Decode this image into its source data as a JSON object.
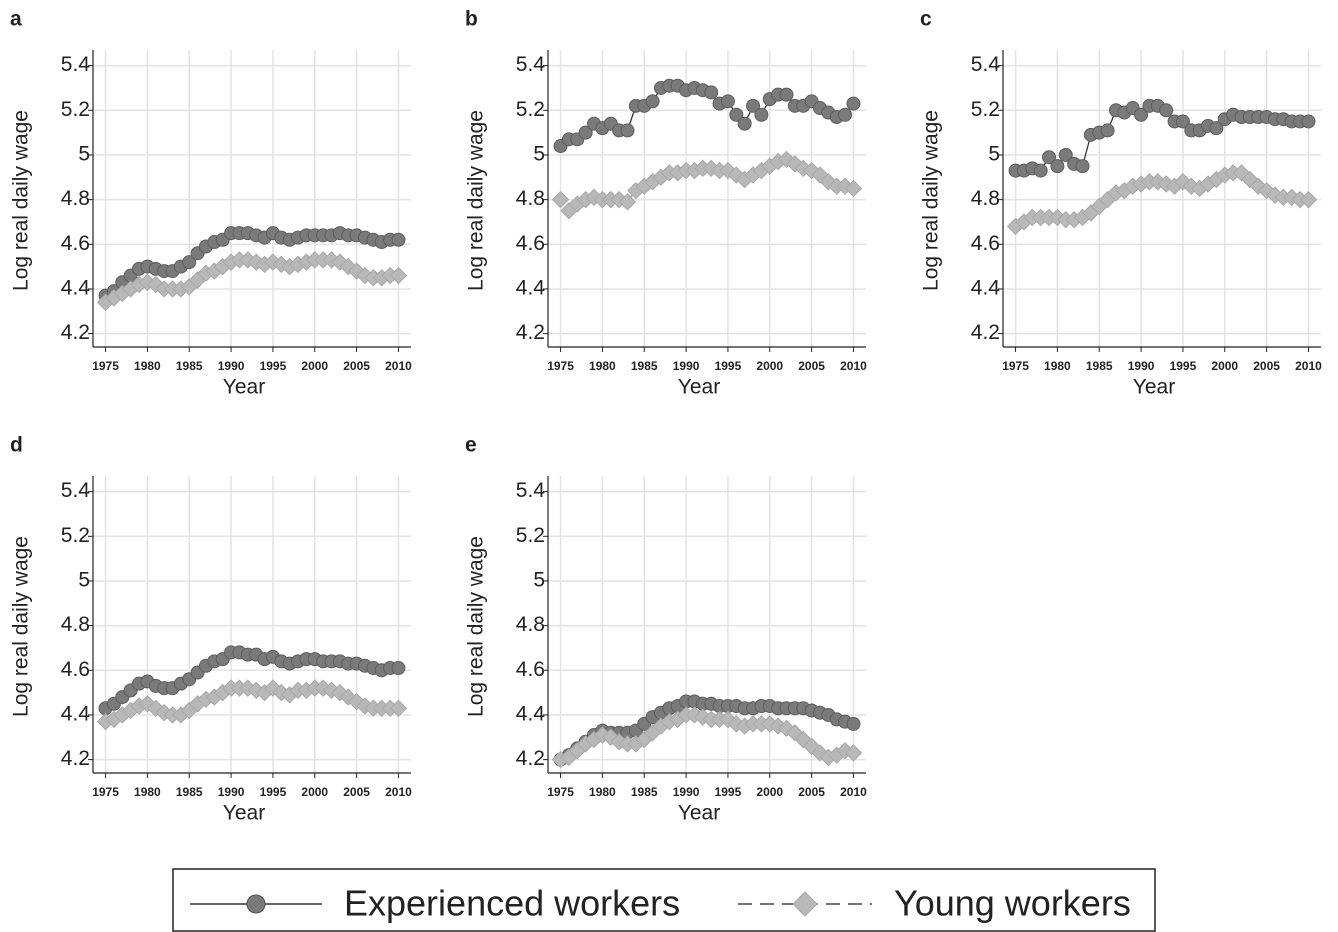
{
  "chart_data": [
    {
      "type": "line",
      "title": "a",
      "xlabel": "Year",
      "ylabel": "Log real daily wage",
      "x": [
        1975,
        1976,
        1977,
        1978,
        1979,
        1980,
        1981,
        1982,
        1983,
        1984,
        1985,
        1986,
        1987,
        1988,
        1989,
        1990,
        1991,
        1992,
        1993,
        1994,
        1995,
        1996,
        1997,
        1998,
        1999,
        2000,
        2001,
        2002,
        2003,
        2004,
        2005,
        2006,
        2007,
        2008,
        2009,
        2010
      ],
      "series": [
        {
          "name": "Experienced workers",
          "color": "#7a7a7a",
          "values": [
            4.37,
            4.39,
            4.43,
            4.46,
            4.49,
            4.5,
            4.49,
            4.48,
            4.48,
            4.5,
            4.52,
            4.56,
            4.59,
            4.61,
            4.62,
            4.65,
            4.65,
            4.65,
            4.64,
            4.63,
            4.65,
            4.63,
            4.62,
            4.63,
            4.64,
            4.64,
            4.64,
            4.64,
            4.65,
            4.64,
            4.64,
            4.63,
            4.62,
            4.61,
            4.62,
            4.62
          ]
        },
        {
          "name": "Young workers",
          "color": "#b8b8b8",
          "values": [
            4.34,
            4.36,
            4.38,
            4.4,
            4.42,
            4.43,
            4.42,
            4.4,
            4.4,
            4.4,
            4.41,
            4.44,
            4.47,
            4.48,
            4.5,
            4.52,
            4.53,
            4.53,
            4.52,
            4.51,
            4.52,
            4.51,
            4.5,
            4.51,
            4.52,
            4.53,
            4.53,
            4.53,
            4.52,
            4.5,
            4.48,
            4.46,
            4.45,
            4.45,
            4.46,
            4.46
          ]
        }
      ],
      "xlim": [
        1973.5,
        2011.5
      ],
      "xticks": [
        1975,
        1980,
        1985,
        1990,
        1995,
        2000,
        2005,
        2010
      ],
      "ylim": [
        4.14,
        5.47
      ],
      "yticks": [
        4.2,
        4.4,
        4.6,
        4.8,
        5,
        5.2,
        5.4
      ],
      "grid": true
    },
    {
      "type": "line",
      "title": "b",
      "xlabel": "Year",
      "ylabel": "Log real daily wage",
      "x": [
        1975,
        1976,
        1977,
        1978,
        1979,
        1980,
        1981,
        1982,
        1983,
        1984,
        1985,
        1986,
        1987,
        1988,
        1989,
        1990,
        1991,
        1992,
        1993,
        1994,
        1995,
        1996,
        1997,
        1998,
        1999,
        2000,
        2001,
        2002,
        2003,
        2004,
        2005,
        2006,
        2007,
        2008,
        2009,
        2010
      ],
      "series": [
        {
          "name": "Experienced workers",
          "color": "#7a7a7a",
          "values": [
            5.04,
            5.07,
            5.07,
            5.1,
            5.14,
            5.12,
            5.14,
            5.11,
            5.11,
            5.22,
            5.22,
            5.24,
            5.3,
            5.31,
            5.31,
            5.29,
            5.3,
            5.29,
            5.28,
            5.23,
            5.24,
            5.18,
            5.14,
            5.22,
            5.18,
            5.25,
            5.27,
            5.27,
            5.22,
            5.22,
            5.24,
            5.21,
            5.19,
            5.17,
            5.18,
            5.23
          ]
        },
        {
          "name": "Young workers",
          "color": "#b8b8b8",
          "values": [
            4.8,
            4.75,
            4.78,
            4.8,
            4.81,
            4.8,
            4.8,
            4.8,
            4.79,
            4.84,
            4.86,
            4.88,
            4.9,
            4.92,
            4.92,
            4.93,
            4.93,
            4.94,
            4.94,
            4.93,
            4.93,
            4.91,
            4.89,
            4.91,
            4.93,
            4.95,
            4.97,
            4.98,
            4.96,
            4.94,
            4.93,
            4.91,
            4.88,
            4.86,
            4.86,
            4.85
          ]
        }
      ],
      "xlim": [
        1973.5,
        2011.5
      ],
      "xticks": [
        1975,
        1980,
        1985,
        1990,
        1995,
        2000,
        2005,
        2010
      ],
      "ylim": [
        4.14,
        5.47
      ],
      "yticks": [
        4.2,
        4.4,
        4.6,
        4.8,
        5,
        5.2,
        5.4
      ],
      "grid": true
    },
    {
      "type": "line",
      "title": "c",
      "xlabel": "Year",
      "ylabel": "Log real daily wage",
      "x": [
        1975,
        1976,
        1977,
        1978,
        1979,
        1980,
        1981,
        1982,
        1983,
        1984,
        1985,
        1986,
        1987,
        1988,
        1989,
        1990,
        1991,
        1992,
        1993,
        1994,
        1995,
        1996,
        1997,
        1998,
        1999,
        2000,
        2001,
        2002,
        2003,
        2004,
        2005,
        2006,
        2007,
        2008,
        2009,
        2010
      ],
      "series": [
        {
          "name": "Experienced workers",
          "color": "#7a7a7a",
          "values": [
            4.93,
            4.93,
            4.94,
            4.93,
            4.99,
            4.95,
            5.0,
            4.96,
            4.95,
            5.09,
            5.1,
            5.11,
            5.2,
            5.19,
            5.21,
            5.18,
            5.22,
            5.22,
            5.2,
            5.15,
            5.15,
            5.11,
            5.11,
            5.13,
            5.12,
            5.16,
            5.18,
            5.17,
            5.17,
            5.17,
            5.17,
            5.16,
            5.16,
            5.15,
            5.15,
            5.15
          ]
        },
        {
          "name": "Young workers",
          "color": "#b8b8b8",
          "values": [
            4.68,
            4.7,
            4.72,
            4.72,
            4.72,
            4.72,
            4.71,
            4.71,
            4.72,
            4.74,
            4.77,
            4.8,
            4.83,
            4.84,
            4.86,
            4.87,
            4.88,
            4.88,
            4.87,
            4.86,
            4.88,
            4.86,
            4.85,
            4.87,
            4.89,
            4.91,
            4.92,
            4.92,
            4.89,
            4.86,
            4.84,
            4.82,
            4.81,
            4.81,
            4.8,
            4.8
          ]
        }
      ],
      "xlim": [
        1973.5,
        2011.5
      ],
      "xticks": [
        1975,
        1980,
        1985,
        1990,
        1995,
        2000,
        2005,
        2010
      ],
      "ylim": [
        4.14,
        5.47
      ],
      "yticks": [
        4.2,
        4.4,
        4.6,
        4.8,
        5,
        5.2,
        5.4
      ],
      "grid": true
    },
    {
      "type": "line",
      "title": "d",
      "xlabel": "Year",
      "ylabel": "Log real daily wage",
      "x": [
        1975,
        1976,
        1977,
        1978,
        1979,
        1980,
        1981,
        1982,
        1983,
        1984,
        1985,
        1986,
        1987,
        1988,
        1989,
        1990,
        1991,
        1992,
        1993,
        1994,
        1995,
        1996,
        1997,
        1998,
        1999,
        2000,
        2001,
        2002,
        2003,
        2004,
        2005,
        2006,
        2007,
        2008,
        2009,
        2010
      ],
      "series": [
        {
          "name": "Experienced workers",
          "color": "#7a7a7a",
          "values": [
            4.43,
            4.45,
            4.48,
            4.51,
            4.54,
            4.55,
            4.53,
            4.52,
            4.52,
            4.54,
            4.56,
            4.59,
            4.62,
            4.64,
            4.65,
            4.68,
            4.68,
            4.67,
            4.67,
            4.65,
            4.66,
            4.64,
            4.63,
            4.64,
            4.65,
            4.65,
            4.64,
            4.64,
            4.64,
            4.63,
            4.63,
            4.62,
            4.61,
            4.6,
            4.61,
            4.61
          ]
        },
        {
          "name": "Young workers",
          "color": "#b8b8b8",
          "values": [
            4.37,
            4.38,
            4.4,
            4.42,
            4.44,
            4.45,
            4.43,
            4.41,
            4.4,
            4.4,
            4.42,
            4.45,
            4.47,
            4.48,
            4.5,
            4.52,
            4.52,
            4.52,
            4.51,
            4.5,
            4.52,
            4.5,
            4.49,
            4.51,
            4.51,
            4.52,
            4.52,
            4.51,
            4.5,
            4.48,
            4.46,
            4.44,
            4.43,
            4.43,
            4.43,
            4.43
          ]
        }
      ],
      "xlim": [
        1973.5,
        2011.5
      ],
      "xticks": [
        1975,
        1980,
        1985,
        1990,
        1995,
        2000,
        2005,
        2010
      ],
      "ylim": [
        4.14,
        5.47
      ],
      "yticks": [
        4.2,
        4.4,
        4.6,
        4.8,
        5,
        5.2,
        5.4
      ],
      "grid": true
    },
    {
      "type": "line",
      "title": "e",
      "xlabel": "Year",
      "ylabel": "Log real daily wage",
      "x": [
        1975,
        1976,
        1977,
        1978,
        1979,
        1980,
        1981,
        1982,
        1983,
        1984,
        1985,
        1986,
        1987,
        1988,
        1989,
        1990,
        1991,
        1992,
        1993,
        1994,
        1995,
        1996,
        1997,
        1998,
        1999,
        2000,
        2001,
        2002,
        2003,
        2004,
        2005,
        2006,
        2007,
        2008,
        2009,
        2010
      ],
      "series": [
        {
          "name": "Experienced workers",
          "color": "#7a7a7a",
          "values": [
            4.2,
            4.22,
            4.25,
            4.28,
            4.31,
            4.33,
            4.32,
            4.32,
            4.32,
            4.33,
            4.36,
            4.39,
            4.41,
            4.43,
            4.44,
            4.46,
            4.46,
            4.45,
            4.45,
            4.44,
            4.44,
            4.44,
            4.43,
            4.43,
            4.44,
            4.44,
            4.43,
            4.43,
            4.43,
            4.43,
            4.42,
            4.41,
            4.4,
            4.38,
            4.37,
            4.36
          ]
        },
        {
          "name": "Young workers",
          "color": "#b8b8b8",
          "values": [
            4.2,
            4.21,
            4.24,
            4.27,
            4.29,
            4.31,
            4.3,
            4.28,
            4.27,
            4.27,
            4.29,
            4.32,
            4.35,
            4.37,
            4.38,
            4.4,
            4.4,
            4.39,
            4.38,
            4.38,
            4.38,
            4.36,
            4.35,
            4.36,
            4.36,
            4.36,
            4.35,
            4.34,
            4.32,
            4.29,
            4.26,
            4.23,
            4.21,
            4.22,
            4.24,
            4.23
          ]
        }
      ],
      "xlim": [
        1973.5,
        2011.5
      ],
      "xticks": [
        1975,
        1980,
        1985,
        1990,
        1995,
        2000,
        2005,
        2010
      ],
      "ylim": [
        4.14,
        5.47
      ],
      "yticks": [
        4.2,
        4.4,
        4.6,
        4.8,
        5,
        5.2,
        5.4
      ],
      "grid": true
    }
  ]
}
